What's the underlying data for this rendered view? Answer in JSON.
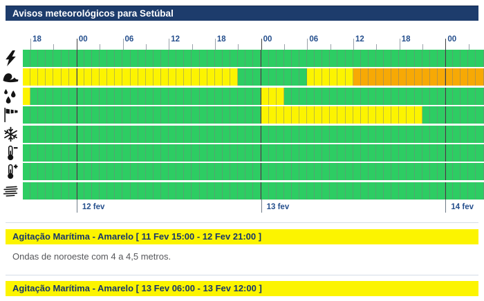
{
  "title": "Avisos meteorológicos para Setúbal",
  "colors": {
    "header_bg": "#1d3c6c",
    "green": "#2dcd63",
    "yellow": "#fcf400",
    "orange": "#f7a905",
    "axis_label": "#254f8d",
    "warning_bg": "#fcf400",
    "warning_title_text": "#17366b",
    "description_text": "#55565a"
  },
  "chart_data": {
    "type": "heatmap",
    "num_cells": 60,
    "hours_per_cell": 1,
    "hour_labels": [
      {
        "index": 1,
        "text": "18"
      },
      {
        "index": 7,
        "text": "00"
      },
      {
        "index": 13,
        "text": "06"
      },
      {
        "index": 19,
        "text": "12"
      },
      {
        "index": 25,
        "text": "18"
      },
      {
        "index": 31,
        "text": "00"
      },
      {
        "index": 37,
        "text": "06"
      },
      {
        "index": 43,
        "text": "12"
      },
      {
        "index": 49,
        "text": "18"
      },
      {
        "index": 55,
        "text": "00"
      }
    ],
    "minor_tick_indices": [
      4,
      10,
      16,
      22,
      28,
      34,
      40,
      46,
      52,
      58
    ],
    "day_boundary_indices": [
      7,
      31,
      55
    ],
    "day_labels": [
      {
        "index": 7,
        "text": "12 fev"
      },
      {
        "index": 31,
        "text": "13 fev"
      },
      {
        "index": 55,
        "text": "14 fev"
      }
    ],
    "legend_colors": {
      "green": "no warning",
      "yellow": "yellow warning",
      "orange": "orange warning"
    },
    "rows": [
      {
        "type": "thunderstorm",
        "icon": "thunderstorm-icon",
        "segments": [
          {
            "color": "green",
            "count": 60
          }
        ]
      },
      {
        "type": "sea-state",
        "icon": "sea-wave-icon",
        "segments": [
          {
            "color": "yellow",
            "count": 28
          },
          {
            "color": "green",
            "count": 9
          },
          {
            "color": "yellow",
            "count": 6
          },
          {
            "color": "orange",
            "count": 17
          }
        ]
      },
      {
        "type": "rain",
        "icon": "rain-drops-icon",
        "segments": [
          {
            "color": "yellow",
            "count": 1
          },
          {
            "color": "green",
            "count": 30
          },
          {
            "color": "yellow",
            "count": 3
          },
          {
            "color": "green",
            "count": 26
          }
        ]
      },
      {
        "type": "wind",
        "icon": "windsock-icon",
        "segments": [
          {
            "color": "green",
            "count": 31
          },
          {
            "color": "yellow",
            "count": 21
          },
          {
            "color": "green",
            "count": 8
          }
        ]
      },
      {
        "type": "snow",
        "icon": "snowflake-icon",
        "segments": [
          {
            "color": "green",
            "count": 60
          }
        ]
      },
      {
        "type": "cold",
        "icon": "thermometer-cold-icon",
        "segments": [
          {
            "color": "green",
            "count": 60
          }
        ]
      },
      {
        "type": "heat",
        "icon": "thermometer-hot-icon",
        "segments": [
          {
            "color": "green",
            "count": 60
          }
        ]
      },
      {
        "type": "fog",
        "icon": "fog-icon",
        "segments": [
          {
            "color": "green",
            "count": 60
          }
        ]
      }
    ]
  },
  "warnings": [
    {
      "title": "Agitação Marítima - Amarelo [ 11 Fev 15:00 - 12 Fev 21:00 ]",
      "description": "Ondas de noroeste com 4 a 4,5 metros."
    },
    {
      "title": "Agitação Marítima - Amarelo [ 13 Fev 06:00 - 13 Fev 12:00 ]",
      "description": ""
    }
  ]
}
